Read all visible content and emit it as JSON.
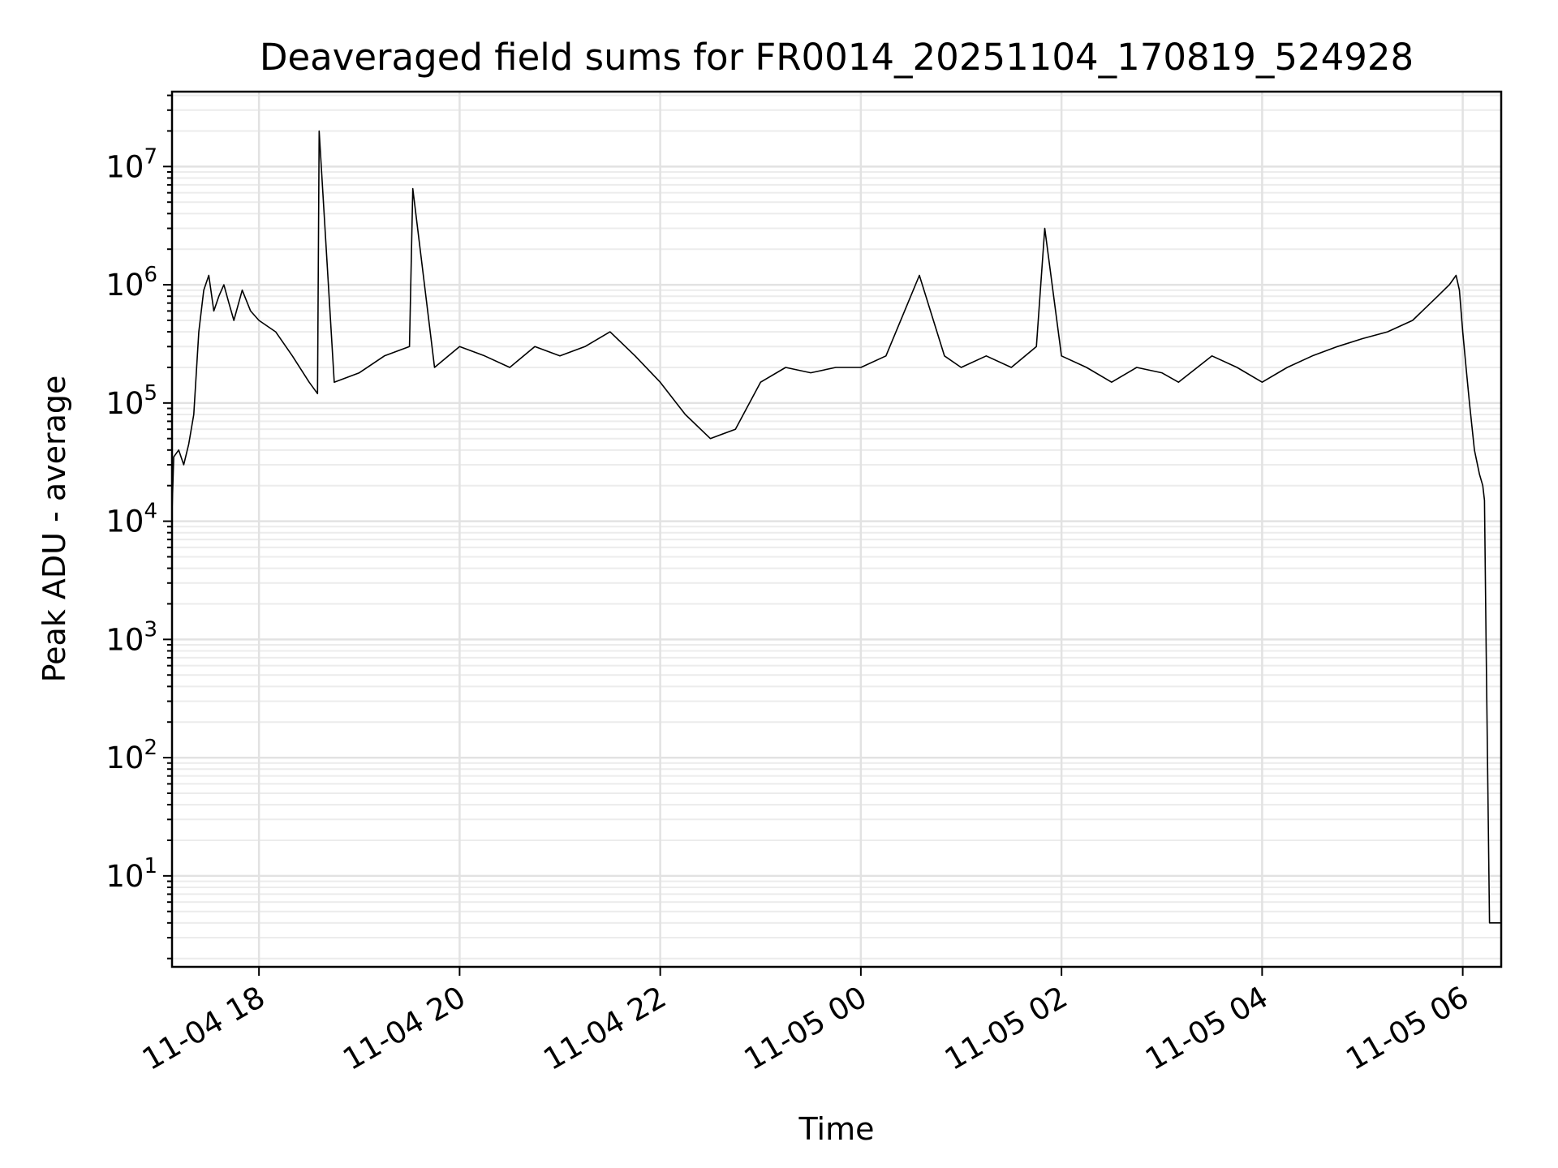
{
  "chart_data": {
    "type": "line",
    "title": "Deaveraged field sums for FR0014_20251104_170819_524928",
    "xlabel": "Time",
    "ylabel": "Peak ADU - average",
    "yscale": "log",
    "grid": true,
    "line_color": "#000000",
    "xlim": [
      "2025-11-04 17:08",
      "2025-11-05 06:23"
    ],
    "ylim": [
      1.7,
      43000000
    ],
    "x_ticks": [
      {
        "value": "2025-11-04 18:00",
        "label": "11-04 18"
      },
      {
        "value": "2025-11-04 20:00",
        "label": "11-04 20"
      },
      {
        "value": "2025-11-04 22:00",
        "label": "11-04 22"
      },
      {
        "value": "2025-11-05 00:00",
        "label": "11-05 00"
      },
      {
        "value": "2025-11-05 02:00",
        "label": "11-05 02"
      },
      {
        "value": "2025-11-05 04:00",
        "label": "11-05 04"
      },
      {
        "value": "2025-11-05 06:00",
        "label": "11-05 06"
      }
    ],
    "y_ticks": [
      {
        "value": 10,
        "base": "10",
        "exp": "1"
      },
      {
        "value": 100,
        "base": "10",
        "exp": "2"
      },
      {
        "value": 1000,
        "base": "10",
        "exp": "3"
      },
      {
        "value": 10000,
        "base": "10",
        "exp": "4"
      },
      {
        "value": 100000,
        "base": "10",
        "exp": "5"
      },
      {
        "value": 1000000,
        "base": "10",
        "exp": "6"
      },
      {
        "value": 10000000,
        "base": "10",
        "exp": "7"
      }
    ],
    "series": [
      {
        "x": [
          "2025-11-04 17:08",
          "2025-11-04 17:09",
          "2025-11-04 17:12",
          "2025-11-04 17:15",
          "2025-11-04 17:18",
          "2025-11-04 17:21",
          "2025-11-04 17:24",
          "2025-11-04 17:27",
          "2025-11-04 17:30",
          "2025-11-04 17:33",
          "2025-11-04 17:36",
          "2025-11-04 17:39",
          "2025-11-04 17:42",
          "2025-11-04 17:45",
          "2025-11-04 17:50",
          "2025-11-04 17:55",
          "2025-11-04 18:00",
          "2025-11-04 18:10",
          "2025-11-04 18:20",
          "2025-11-04 18:30",
          "2025-11-04 18:35",
          "2025-11-04 18:36",
          "2025-11-04 18:45",
          "2025-11-04 19:00",
          "2025-11-04 19:15",
          "2025-11-04 19:30",
          "2025-11-04 19:32",
          "2025-11-04 19:45",
          "2025-11-04 20:00",
          "2025-11-04 20:15",
          "2025-11-04 20:30",
          "2025-11-04 20:45",
          "2025-11-04 21:00",
          "2025-11-04 21:15",
          "2025-11-04 21:30",
          "2025-11-04 21:45",
          "2025-11-04 22:00",
          "2025-11-04 22:15",
          "2025-11-04 22:30",
          "2025-11-04 22:45",
          "2025-11-04 23:00",
          "2025-11-04 23:15",
          "2025-11-04 23:30",
          "2025-11-04 23:45",
          "2025-11-05 00:00",
          "2025-11-05 00:15",
          "2025-11-05 00:35",
          "2025-11-05 00:50",
          "2025-11-05 01:00",
          "2025-11-05 01:15",
          "2025-11-05 01:30",
          "2025-11-05 01:45",
          "2025-11-05 01:50",
          "2025-11-05 02:00",
          "2025-11-05 02:15",
          "2025-11-05 02:30",
          "2025-11-05 02:45",
          "2025-11-05 03:00",
          "2025-11-05 03:10",
          "2025-11-05 03:30",
          "2025-11-05 03:45",
          "2025-11-05 04:00",
          "2025-11-05 04:15",
          "2025-11-05 04:30",
          "2025-11-05 04:45",
          "2025-11-05 05:00",
          "2025-11-05 05:15",
          "2025-11-05 05:30",
          "2025-11-05 05:45",
          "2025-11-05 05:52",
          "2025-11-05 05:56",
          "2025-11-05 05:58",
          "2025-11-05 06:00",
          "2025-11-05 06:02",
          "2025-11-05 06:04",
          "2025-11-05 06:07",
          "2025-11-05 06:10",
          "2025-11-05 06:12",
          "2025-11-05 06:13",
          "2025-11-05 06:14",
          "2025-11-05 06:16",
          "2025-11-05 06:23"
        ],
        "values": [
          12000,
          35000,
          40000,
          30000,
          45000,
          80000,
          400000,
          900000,
          1200000,
          600000,
          800000,
          1000000,
          700000,
          500000,
          900000,
          600000,
          500000,
          400000,
          250000,
          150000,
          120000,
          20000000,
          150000,
          180000,
          250000,
          300000,
          6500000,
          200000,
          300000,
          250000,
          200000,
          300000,
          250000,
          300000,
          400000,
          250000,
          150000,
          80000,
          50000,
          60000,
          150000,
          200000,
          180000,
          200000,
          200000,
          250000,
          1200000,
          250000,
          200000,
          250000,
          200000,
          300000,
          3000000,
          250000,
          200000,
          150000,
          200000,
          180000,
          150000,
          250000,
          200000,
          150000,
          200000,
          250000,
          300000,
          350000,
          400000,
          500000,
          800000,
          1000000,
          1200000,
          900000,
          400000,
          200000,
          100000,
          40000,
          25000,
          20000,
          15000,
          800,
          4,
          4
        ]
      }
    ]
  }
}
